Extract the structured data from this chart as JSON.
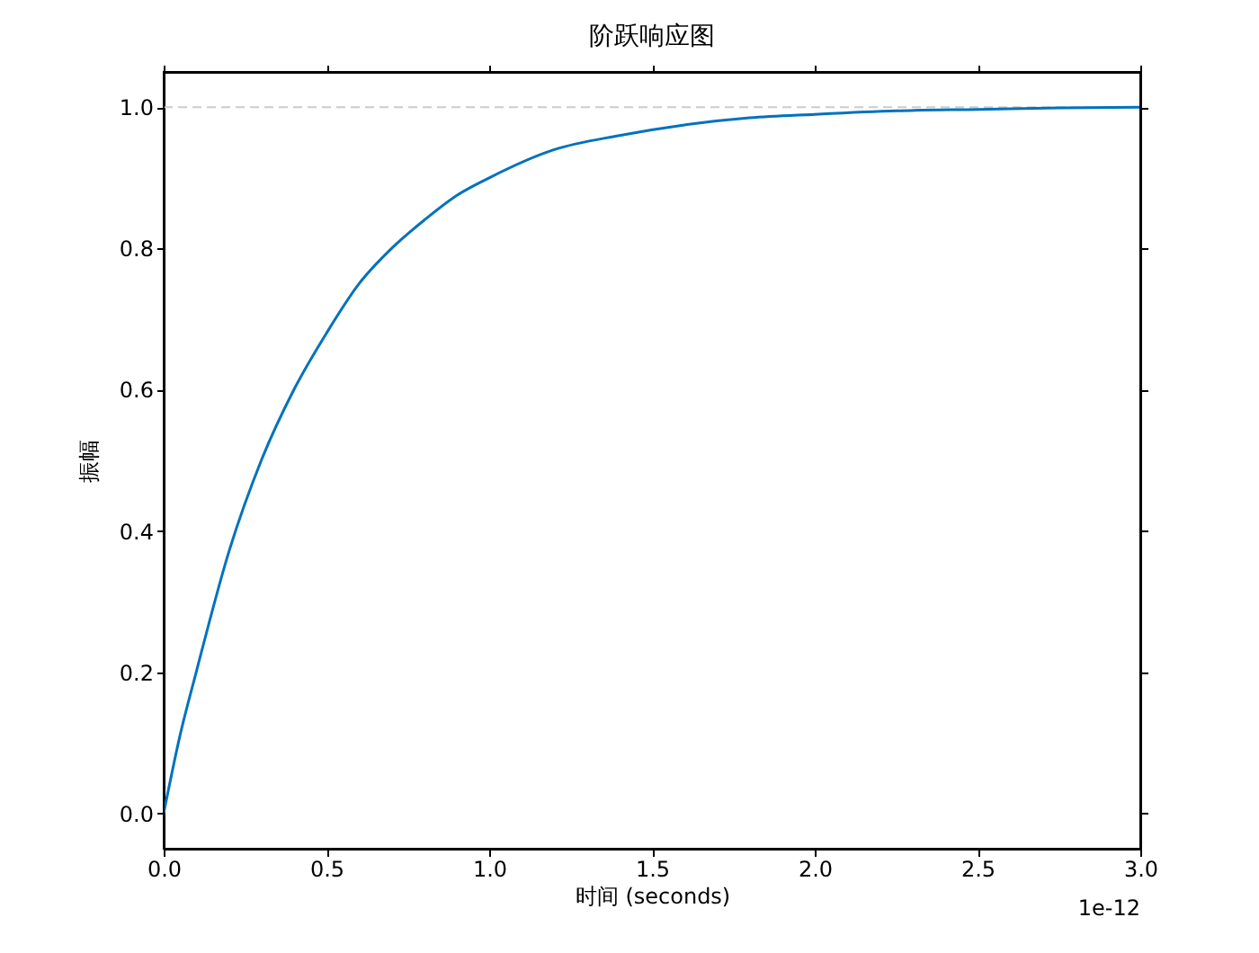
{
  "chart_data": {
    "type": "line",
    "title": "阶跃响应图",
    "xlabel": "时间 (seconds)",
    "ylabel": "振幅",
    "x": [
      0,
      0.05,
      0.1,
      0.2,
      0.3,
      0.4,
      0.5,
      0.6,
      0.7,
      0.8,
      0.9,
      1.0,
      1.2,
      1.4,
      1.6,
      1.8,
      2.0,
      2.25,
      2.5,
      2.75,
      3.0
    ],
    "series": [
      {
        "color": "#0072bd",
        "values": [
          0,
          0.11,
          0.2,
          0.37,
          0.5,
          0.6,
          0.68,
          0.75,
          0.8,
          0.84,
          0.875,
          0.9,
          0.94,
          0.96,
          0.975,
          0.985,
          0.99,
          0.995,
          0.997,
          0.999,
          1.0
        ]
      }
    ],
    "xlim": [
      0,
      3
    ],
    "ylim": [
      -0.05,
      1.05
    ],
    "xticks": [
      {
        "value": 0,
        "label": "0.0"
      },
      {
        "value": 0.5,
        "label": "0.5"
      },
      {
        "value": 1,
        "label": "1.0"
      },
      {
        "value": 1.5,
        "label": "1.5"
      },
      {
        "value": 2,
        "label": "2.0"
      },
      {
        "value": 2.5,
        "label": "2.5"
      },
      {
        "value": 3,
        "label": "3.0"
      }
    ],
    "yticks": [
      {
        "value": 0,
        "label": "0.0"
      },
      {
        "value": 0.2,
        "label": "0.2"
      },
      {
        "value": 0.4,
        "label": "0.4"
      },
      {
        "value": 0.6,
        "label": "0.6"
      },
      {
        "value": 0.8,
        "label": "0.8"
      },
      {
        "value": 1,
        "label": "1.0"
      }
    ],
    "ref_lines": [
      {
        "axis": "y",
        "value": 1.0,
        "color": "#cccccc",
        "line_style": "dashed"
      }
    ],
    "annotations": [
      "1e-12"
    ],
    "grid": false
  }
}
